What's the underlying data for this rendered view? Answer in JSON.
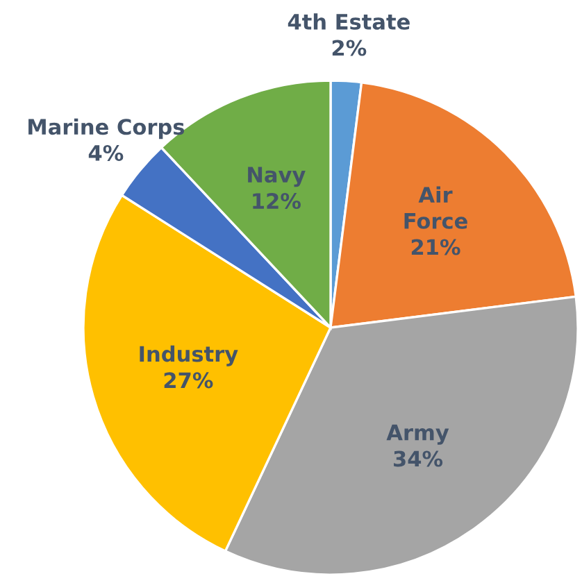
{
  "chart_data": {
    "type": "pie",
    "categories": [
      "4th Estate",
      "Air Force",
      "Army",
      "Industry",
      "Marine Corps",
      "Navy"
    ],
    "values": [
      2,
      21,
      34,
      27,
      4,
      12
    ],
    "colors": [
      "#5b9bd5",
      "#ed7d31",
      "#a5a5a5",
      "#ffc000",
      "#4472c4",
      "#70ad47"
    ],
    "value_labels": [
      "2%",
      "21%",
      "34%",
      "27%",
      "4%",
      "12%"
    ],
    "legend": false
  }
}
